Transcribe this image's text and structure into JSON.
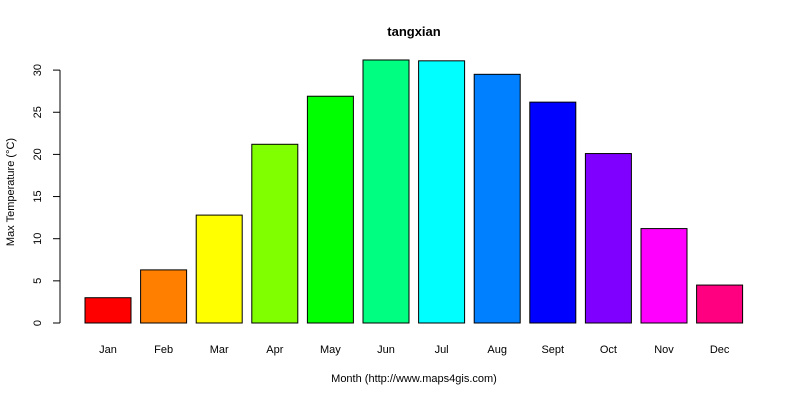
{
  "chart_data": {
    "type": "bar",
    "title": "tangxian",
    "xlabel": "Month (http://www.maps4gis.com)",
    "ylabel": "Max Temperature (°C)",
    "categories": [
      "Jan",
      "Feb",
      "Mar",
      "Apr",
      "May",
      "Jun",
      "Jul",
      "Aug",
      "Sept",
      "Oct",
      "Nov",
      "Dec"
    ],
    "values": [
      3.0,
      6.3,
      12.8,
      21.2,
      26.9,
      31.2,
      31.1,
      29.5,
      26.2,
      20.1,
      11.2,
      4.5
    ],
    "colors": [
      "#FF0000",
      "#FF7F00",
      "#FFFF00",
      "#80FF00",
      "#00FF00",
      "#00FF80",
      "#00FFFF",
      "#0080FF",
      "#0000FF",
      "#8000FF",
      "#FF00FF",
      "#FF0080"
    ],
    "yticks": [
      0,
      5,
      10,
      15,
      20,
      25,
      30
    ],
    "ylim": [
      0,
      31.2
    ],
    "grid": false,
    "legend": "none"
  }
}
